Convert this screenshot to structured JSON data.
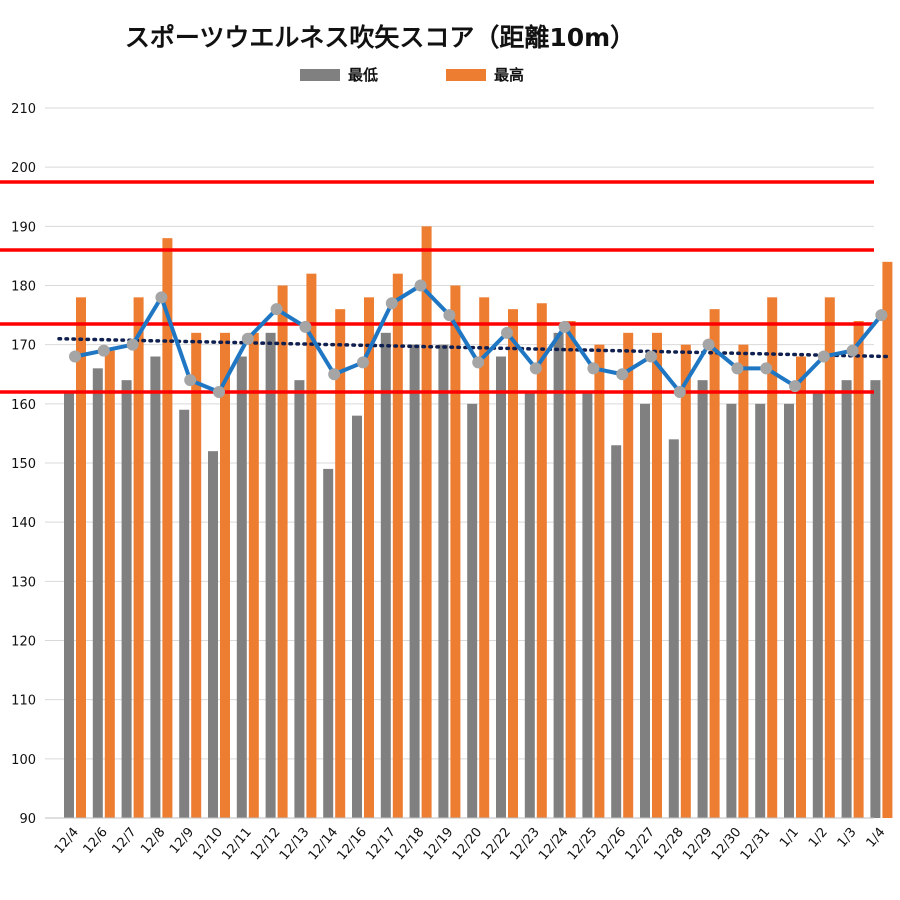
{
  "chart_data": {
    "type": "bar",
    "title": "スポーツウエルネス吹矢スコア（距離10m）",
    "categories": [
      "12/4",
      "12/6",
      "12/7",
      "12/8",
      "12/9",
      "12/10",
      "12/11",
      "12/12",
      "12/13",
      "12/14",
      "12/16",
      "12/17",
      "12/18",
      "12/19",
      "12/20",
      "12/22",
      "12/23",
      "12/24",
      "12/25",
      "12/26",
      "12/27",
      "12/28",
      "12/29",
      "12/30",
      "12/31",
      "1/1",
      "1/2",
      "1/3",
      "1/4"
    ],
    "series": [
      {
        "name": "最低",
        "type": "bar",
        "color": "#808080",
        "values": [
          162,
          166,
          164,
          168,
          159,
          152,
          168,
          172,
          164,
          149,
          158,
          172,
          170,
          170,
          160,
          168,
          162,
          172,
          162,
          153,
          160,
          154,
          164,
          160,
          160,
          160,
          162,
          164,
          164
        ]
      },
      {
        "name": "最高",
        "type": "bar",
        "color": "#ED7D31",
        "values": [
          178,
          169,
          178,
          188,
          172,
          172,
          172,
          180,
          182,
          176,
          178,
          182,
          190,
          180,
          178,
          176,
          177,
          174,
          170,
          172,
          172,
          170,
          176,
          170,
          178,
          168,
          178,
          174,
          184
        ]
      },
      {
        "type": "line",
        "color": "#1F77C4",
        "marker_color": "#A5A5A5",
        "values": [
          168,
          169,
          170,
          178,
          164,
          162,
          171,
          176,
          173,
          165,
          167,
          177,
          180,
          175,
          167,
          172,
          166,
          173,
          166,
          165,
          168,
          162,
          170,
          166,
          166,
          163,
          168,
          169,
          175
        ]
      }
    ],
    "trendline": {
      "style": "dotted",
      "color": "#0F1F4F",
      "start": 171,
      "end": 168
    },
    "reference_lines": {
      "color": "#FF0000",
      "values": [
        162,
        173.5,
        186,
        197.5
      ]
    },
    "ylim": [
      90,
      210
    ],
    "yticks": [
      90,
      100,
      110,
      120,
      130,
      140,
      150,
      160,
      170,
      180,
      190,
      200,
      210
    ],
    "grid": true,
    "legend_position": "top"
  }
}
